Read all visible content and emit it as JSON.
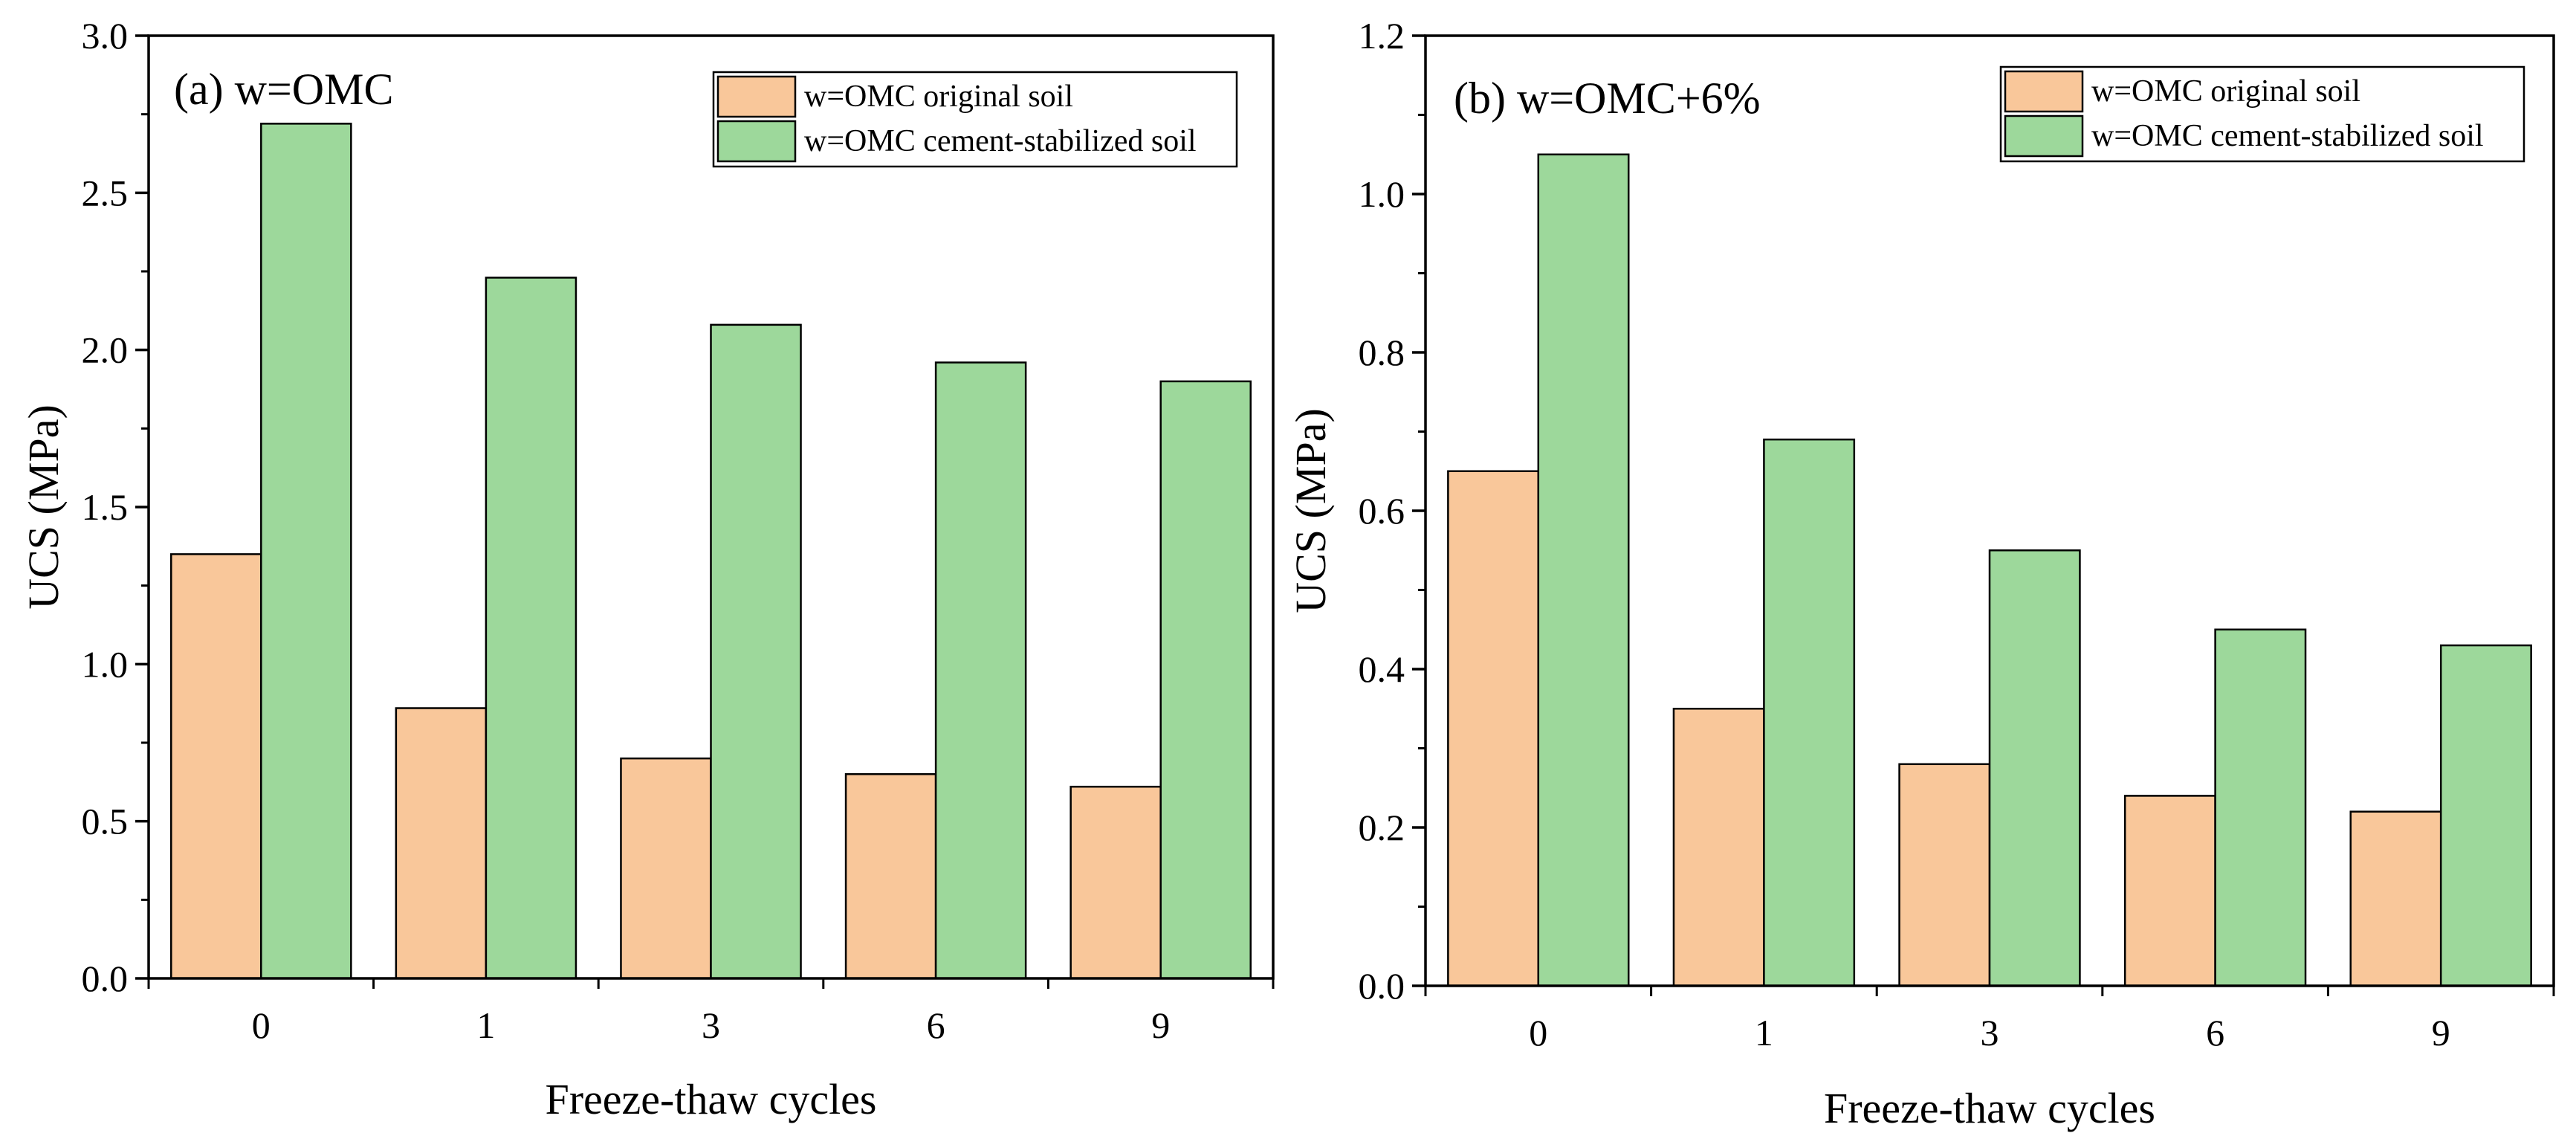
{
  "chart_data": [
    {
      "type": "bar",
      "title": "(a) w=OMC",
      "xlabel": "Freeze-thaw cycles",
      "ylabel": "UCS (MPa)",
      "categories": [
        "0",
        "1",
        "3",
        "6",
        "9"
      ],
      "ylim": [
        0,
        3.0
      ],
      "yticks": [
        "0.0",
        "0.5",
        "1.0",
        "1.5",
        "2.0",
        "2.5",
        "3.0"
      ],
      "legend_position": "top-right",
      "series": [
        {
          "name": "w=OMC original soil",
          "color": "#f9c79a",
          "values": [
            1.35,
            0.86,
            0.7,
            0.65,
            0.61
          ]
        },
        {
          "name": "w=OMC cement-stabilized soil",
          "color": "#9dd89b",
          "values": [
            2.72,
            2.23,
            2.08,
            1.96,
            1.9
          ]
        }
      ]
    },
    {
      "type": "bar",
      "title": "(b) w=OMC+6%",
      "xlabel": "Freeze-thaw cycles",
      "ylabel": "UCS (MPa)",
      "categories": [
        "0",
        "1",
        "3",
        "6",
        "9"
      ],
      "ylim": [
        0,
        1.2
      ],
      "yticks": [
        "0.0",
        "0.2",
        "0.4",
        "0.6",
        "0.8",
        "1.0",
        "1.2"
      ],
      "legend_position": "top-right",
      "series": [
        {
          "name": "w=OMC original soil",
          "color": "#f9c79a",
          "values": [
            0.65,
            0.35,
            0.28,
            0.24,
            0.22
          ]
        },
        {
          "name": "w=OMC cement-stabilized soil",
          "color": "#9dd89b",
          "values": [
            1.05,
            0.69,
            0.55,
            0.45,
            0.43
          ]
        }
      ]
    }
  ]
}
